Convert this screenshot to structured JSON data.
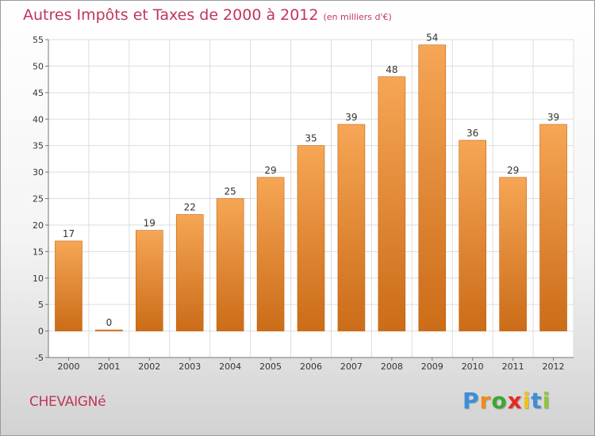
{
  "header": {
    "title": "Autres Impôts et Taxes de 2000 à 2012",
    "subtitle": "(en milliers d'€)"
  },
  "footer": {
    "commune": "CHEVAIGNé",
    "logo_letters": [
      "P",
      "r",
      "o",
      "x",
      "i",
      "t",
      "i"
    ],
    "logo_colors": [
      "#3a8fd6",
      "#f28a1b",
      "#3fa535",
      "#e62a22",
      "#f0c21a",
      "#3a8fd6",
      "#8dc63f"
    ]
  },
  "colors": {
    "bar_top": "#f6a655",
    "bar_bottom": "#cb6c18",
    "grid": "#dddddd",
    "axis": "#777777"
  },
  "chart_data": {
    "type": "bar",
    "categories": [
      "2000",
      "2001",
      "2002",
      "2003",
      "2004",
      "2005",
      "2006",
      "2007",
      "2008",
      "2009",
      "2010",
      "2011",
      "2012"
    ],
    "values": [
      17,
      0,
      19,
      22,
      25,
      29,
      35,
      39,
      48,
      54,
      36,
      29,
      39
    ],
    "data_labels": [
      "17",
      "0",
      "19",
      "22",
      "25",
      "29",
      "35",
      "39",
      "48",
      "54",
      "36",
      "29",
      "39"
    ],
    "yticks": [
      -5,
      0,
      5,
      10,
      15,
      20,
      25,
      30,
      35,
      40,
      45,
      50,
      55
    ],
    "ytick_labels": [
      "-5",
      "0",
      "5",
      "10",
      "15",
      "20",
      "25",
      "30",
      "35",
      "40",
      "45",
      "50",
      "55"
    ],
    "ylim": [
      -5,
      55
    ],
    "grid": true,
    "legend": "none"
  }
}
